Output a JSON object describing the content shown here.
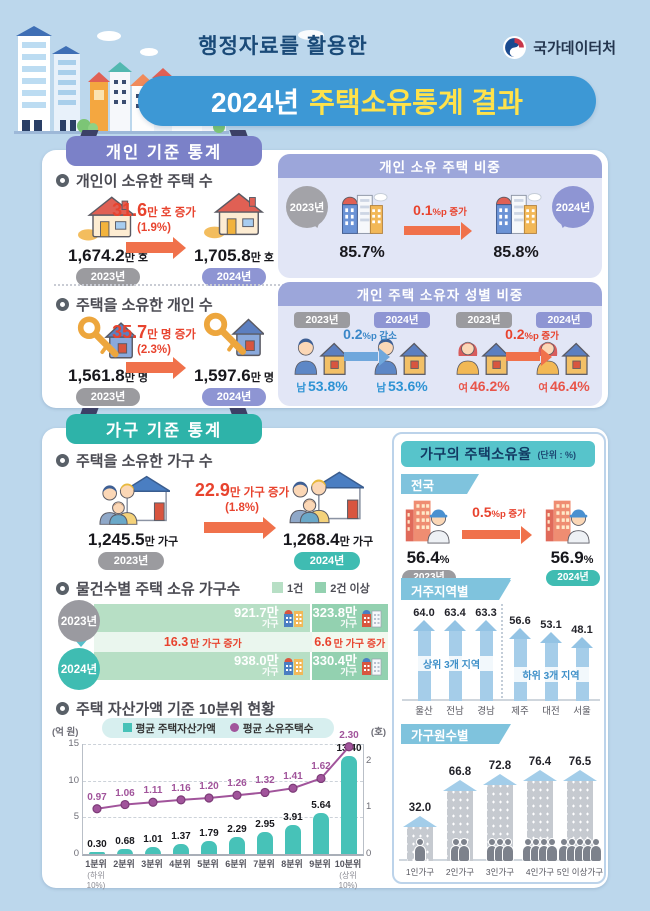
{
  "header": {
    "subtitle": "행정자료를 활용한",
    "title_year": "2024년",
    "title_rest": "주택소유통계 결과",
    "agency": "국가데이터처"
  },
  "individual": {
    "badge": "개인 기준 통계",
    "houses": {
      "heading": "개인이 소유한 주택 수",
      "from_num": "1,674.2",
      "from_unit": "만 호",
      "from_year": "2023년",
      "change_num": "31.6",
      "change_unit": "만 호 증가",
      "change_pct": "(1.9%)",
      "to_num": "1,705.8",
      "to_unit": "만 호",
      "to_year": "2024년"
    },
    "owners": {
      "heading": "주택을 소유한 개인 수",
      "from_num": "1,561.8",
      "from_unit": "만 명",
      "from_year": "2023년",
      "change_num": "35.7",
      "change_unit": "만 명 증가",
      "change_pct": "(2.3%)",
      "to_num": "1,597.6",
      "to_unit": "만 명",
      "to_year": "2024년"
    },
    "ratio_panel": {
      "title": "개인 소유 주택 비중",
      "year_from": "2023년",
      "val_from": "85.7%",
      "change_num": "0.1",
      "change_unit": "%p 증가",
      "year_to": "2024년",
      "val_to": "85.8%"
    },
    "gender_panel": {
      "title": "개인 주택 소유자 성별 비중",
      "male": {
        "year_from": "2023년",
        "year_to": "2024년",
        "from_label": "남",
        "from_val": "53.8%",
        "change_num": "0.2",
        "change_unit": "%p 감소",
        "to_label": "남",
        "to_val": "53.6%"
      },
      "female": {
        "year_from": "2023년",
        "year_to": "2024년",
        "from_label": "여",
        "from_val": "46.2%",
        "change_num": "0.2",
        "change_unit": "%p 증가",
        "to_label": "여",
        "to_val": "46.4%"
      }
    }
  },
  "household": {
    "badge": "가구 기준 통계",
    "owning": {
      "heading": "주택을 소유한 가구 수",
      "from_num": "1,245.5",
      "from_unit": "만 가구",
      "from_year": "2023년",
      "change_num": "22.9",
      "change_unit": "만 가구 증가",
      "change_pct": "(1.8%)",
      "to_num": "1,268.4",
      "to_unit": "만 가구",
      "to_year": "2024년"
    },
    "by_count": {
      "heading": "물건수별 주택 소유 가구수",
      "legend": [
        "1건",
        "2건 이상"
      ],
      "row_2023": {
        "year": "2023년",
        "seg1_num": "921.7만",
        "seg1_unit": "가구",
        "seg2_num": "323.8만",
        "seg2_unit": "가구"
      },
      "change1_num": "16.3",
      "change1_unit": "만 가구 증가",
      "change2_num": "6.6",
      "change2_unit": "만 가구 증가",
      "row_2024": {
        "year": "2024년",
        "seg1_num": "938.0만",
        "seg1_unit": "가구",
        "seg2_num": "330.4만",
        "seg2_unit": "가구"
      }
    },
    "decile_heading": "주택 자산가액 기준 10분위 현황"
  },
  "ownership_rate": {
    "title": "가구의 주택소유율",
    "unit_note": "(단위 : %)",
    "national": {
      "tab": "전국",
      "from_val": "56.4",
      "pct": "%",
      "from_year": "2023년",
      "change_num": "0.5",
      "change_unit": "%p 증가",
      "to_val": "56.9",
      "to_year": "2024년"
    }
  },
  "chart_data": [
    {
      "id": "decile",
      "type": "bar+line",
      "title": "주택 자산가액 기준 10분위 현황",
      "categories": [
        "1분위",
        "2분위",
        "3분위",
        "4분위",
        "5분위",
        "6분위",
        "7분위",
        "8분위",
        "9분위",
        "10분위"
      ],
      "first_note": "(하위10%)",
      "last_note": "(상위10%)",
      "series": [
        {
          "name": "평균 주택자산가액",
          "type": "bar",
          "axis": "left",
          "color": "#47c2b8",
          "values": [
            0.3,
            0.68,
            1.01,
            1.37,
            1.79,
            2.29,
            2.95,
            3.91,
            5.64,
            13.4
          ],
          "labels": [
            "0.30",
            "0.68",
            "1.01",
            "1.37",
            "1.79",
            "2.29",
            "2.95",
            "3.91",
            "5.64",
            "13.40"
          ]
        },
        {
          "name": "평균 소유주택수",
          "type": "line",
          "axis": "right",
          "color": "#a1549b",
          "values": [
            0.97,
            1.06,
            1.11,
            1.16,
            1.2,
            1.26,
            1.32,
            1.41,
            1.62,
            2.3
          ],
          "labels": [
            "0.97",
            "1.06",
            "1.11",
            "1.16",
            "1.20",
            "1.26",
            "1.32",
            "1.41",
            "1.62",
            "2.30"
          ]
        }
      ],
      "left_axis": {
        "label": "(억 원)",
        "ticks": [
          0,
          5,
          10,
          15
        ],
        "max": 15
      },
      "right_axis": {
        "label": "(호)",
        "ticks": [
          0,
          1,
          2
        ],
        "unit_per_left": 6.36
      },
      "grid": "dashed-horizontal",
      "legend_position": "top"
    },
    {
      "id": "region",
      "type": "bar",
      "tab": "거주지역별",
      "groups": [
        {
          "band": "상위 3개 지역",
          "categories": [
            "울산",
            "전남",
            "경남"
          ],
          "values": [
            64.0,
            63.4,
            63.3
          ],
          "labels": [
            "64.0",
            "63.4",
            "63.3"
          ]
        },
        {
          "band": "하위 3개 지역",
          "categories": [
            "제주",
            "대전",
            "서울"
          ],
          "values": [
            56.6,
            53.1,
            48.1
          ],
          "labels": [
            "56.6",
            "53.1",
            "48.1"
          ]
        }
      ]
    },
    {
      "id": "hhsize",
      "type": "bar",
      "tab": "가구원수별",
      "categories": [
        "1인가구",
        "2인가구",
        "3인가구",
        "4인가구",
        "5인 이상가구"
      ],
      "values": [
        32.0,
        66.8,
        72.8,
        76.4,
        76.5
      ],
      "labels": [
        "32.0",
        "66.8",
        "72.8",
        "76.4",
        "76.5"
      ],
      "people": [
        1,
        2,
        3,
        4,
        5
      ]
    }
  ]
}
